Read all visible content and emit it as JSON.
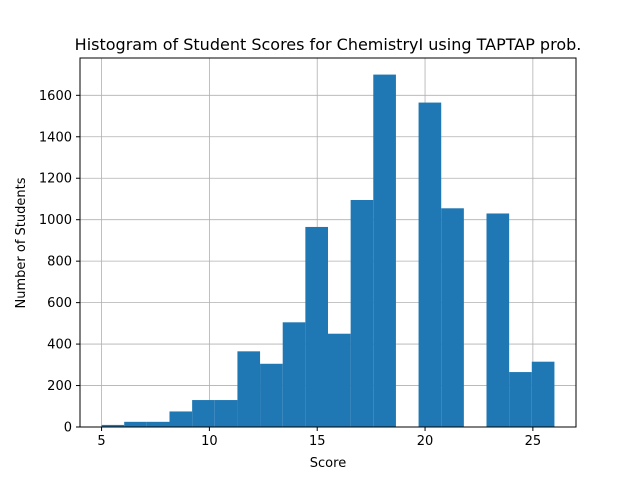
{
  "chart_data": {
    "type": "bar",
    "title": "Histogram of Student Scores for ChemistryI using TAPTAP prob.",
    "xlabel": "Score",
    "ylabel": "Number of Students",
    "xlim": [
      4.0,
      27.0
    ],
    "ylim": [
      0,
      1780
    ],
    "x_ticks": [
      5,
      10,
      15,
      20,
      25
    ],
    "y_ticks": [
      0,
      200,
      400,
      600,
      800,
      1000,
      1200,
      1400,
      1600
    ],
    "grid": true,
    "bar_color": "#1f77b4",
    "bins": [
      {
        "x0": 5.0,
        "x1": 6.05,
        "value": 10
      },
      {
        "x0": 6.05,
        "x1": 7.1,
        "value": 25
      },
      {
        "x0": 7.1,
        "x1": 8.15,
        "value": 25
      },
      {
        "x0": 8.15,
        "x1": 9.2,
        "value": 75
      },
      {
        "x0": 9.2,
        "x1": 10.25,
        "value": 130
      },
      {
        "x0": 10.25,
        "x1": 11.3,
        "value": 130
      },
      {
        "x0": 11.3,
        "x1": 12.35,
        "value": 365
      },
      {
        "x0": 12.35,
        "x1": 13.4,
        "value": 305
      },
      {
        "x0": 13.4,
        "x1": 14.45,
        "value": 505
      },
      {
        "x0": 14.45,
        "x1": 15.5,
        "value": 965
      },
      {
        "x0": 15.5,
        "x1": 16.55,
        "value": 450
      },
      {
        "x0": 16.55,
        "x1": 17.6,
        "value": 1095
      },
      {
        "x0": 17.6,
        "x1": 18.65,
        "value": 1700
      },
      {
        "x0": 18.65,
        "x1": 19.7,
        "value": 0
      },
      {
        "x0": 19.7,
        "x1": 20.75,
        "value": 1565
      },
      {
        "x0": 20.75,
        "x1": 21.8,
        "value": 1055
      },
      {
        "x0": 21.8,
        "x1": 22.85,
        "value": 0
      },
      {
        "x0": 22.85,
        "x1": 23.9,
        "value": 1030
      },
      {
        "x0": 23.9,
        "x1": 24.95,
        "value": 265
      },
      {
        "x0": 24.95,
        "x1": 26.0,
        "value": 315
      }
    ]
  }
}
